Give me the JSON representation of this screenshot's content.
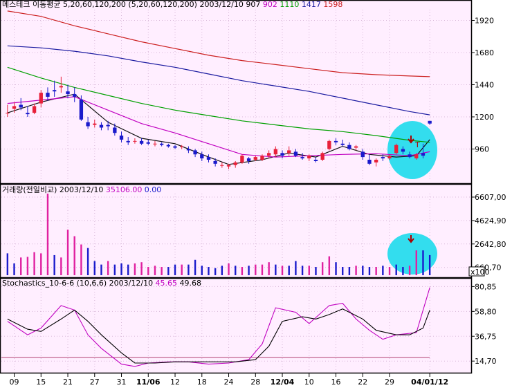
{
  "colors": {
    "background": "#ffffff",
    "plot_bg": "#ffeeff",
    "frame": "#000000",
    "bull": "#e8203a",
    "bear": "#1a1acc",
    "ma5": "#111111",
    "ma20": "#c000c0",
    "ma60": "#00a000",
    "ma120": "#1a1aa0",
    "ma200": "#cc2020",
    "vol_bull": "#e020a0",
    "vol_bear": "#1a1acc",
    "stoch_k": "#c000c0",
    "stoch_d": "#000000",
    "stoch_ref": "#b04070",
    "highlight": "#33ddee",
    "annotation_arrow": "#aa0000"
  },
  "header_price": {
    "parts": [
      {
        "text": "메스테크 이동평균 5,20,60,120,200 (5,20,60,120,200)  2003/12/10  907",
        "color": "#000000"
      },
      {
        "text": "  902",
        "color": "#c000c0"
      },
      {
        "text": "  1110",
        "color": "#00a000"
      },
      {
        "text": "  1417",
        "color": "#1a1aa0"
      },
      {
        "text": "  1598",
        "color": "#cc2020"
      }
    ]
  },
  "header_volume": {
    "parts": [
      {
        "text": "거래량(전일비교)  2003/12/10",
        "color": "#000000"
      },
      {
        "text": "  35106.00",
        "color": "#c000c0"
      },
      {
        "text": "  0.00",
        "color": "#1a1acc"
      }
    ]
  },
  "header_stoch": {
    "parts": [
      {
        "text": "Stochastics_10-6-6 (10,6,6) 2003/12/10",
        "color": "#000000"
      },
      {
        "text": "  45.65",
        "color": "#c000c0"
      },
      {
        "text": "  49.68",
        "color": "#000000"
      }
    ]
  },
  "annotation": {
    "text": "T"
  },
  "chart_data": [
    {
      "type": "candlestick",
      "title": "메스테크 이동평균 5,20,60,120,200 (5,20,60,120,200)",
      "ylim": [
        720,
        2000
      ],
      "yticks": [
        "1920",
        "1680",
        "1440",
        "1200",
        "960"
      ],
      "ytick_values": [
        1920,
        1680,
        1440,
        1200,
        960
      ],
      "xticks": [
        "09",
        "15",
        "21",
        "27",
        "31",
        "11/06",
        "12",
        "18",
        "24",
        "28",
        "12/04",
        "10",
        "16",
        "22",
        "29",
        "04/01/12"
      ],
      "xtick_index": [
        1,
        5,
        9,
        13,
        17,
        21,
        25,
        29,
        33,
        37,
        41,
        45,
        49,
        53,
        57,
        63
      ],
      "candles": [
        [
          1230,
          1290,
          1200,
          1230
        ],
        [
          1260,
          1310,
          1230,
          1280
        ],
        [
          1290,
          1340,
          1250,
          1270
        ],
        [
          1230,
          1280,
          1200,
          1220
        ],
        [
          1230,
          1300,
          1220,
          1280
        ],
        [
          1300,
          1400,
          1270,
          1380
        ],
        [
          1380,
          1420,
          1320,
          1350
        ],
        [
          1400,
          1470,
          1350,
          1390
        ],
        [
          1420,
          1500,
          1380,
          1430
        ],
        [
          1390,
          1440,
          1340,
          1370
        ],
        [
          1370,
          1420,
          1310,
          1350
        ],
        [
          1330,
          1360,
          1170,
          1180
        ],
        [
          1160,
          1200,
          1110,
          1130
        ],
        [
          1140,
          1180,
          1120,
          1150
        ],
        [
          1140,
          1160,
          1100,
          1120
        ],
        [
          1140,
          1170,
          1100,
          1130
        ],
        [
          1120,
          1150,
          1060,
          1080
        ],
        [
          1060,
          1090,
          1010,
          1030
        ],
        [
          1020,
          1050,
          990,
          1010
        ],
        [
          1020,
          1040,
          1000,
          1020
        ],
        [
          1020,
          1040,
          990,
          1000
        ],
        [
          1010,
          1030,
          990,
          1000
        ],
        [
          1000,
          1020,
          980,
          1000
        ],
        [
          1000,
          1010,
          980,
          990
        ],
        [
          990,
          1000,
          970,
          980
        ],
        [
          980,
          990,
          960,
          970
        ],
        [
          980,
          990,
          960,
          980
        ],
        [
          960,
          980,
          930,
          950
        ],
        [
          950,
          960,
          900,
          920
        ],
        [
          920,
          940,
          870,
          890
        ],
        [
          900,
          920,
          860,
          880
        ],
        [
          870,
          890,
          830,
          850
        ],
        [
          840,
          860,
          820,
          840
        ],
        [
          830,
          850,
          810,
          840
        ],
        [
          840,
          870,
          820,
          860
        ],
        [
          860,
          920,
          850,
          910
        ],
        [
          890,
          900,
          850,
          870
        ],
        [
          880,
          910,
          870,
          900
        ],
        [
          880,
          920,
          870,
          910
        ],
        [
          910,
          950,
          890,
          930
        ],
        [
          920,
          980,
          900,
          960
        ],
        [
          930,
          950,
          890,
          910
        ],
        [
          930,
          980,
          910,
          950
        ],
        [
          940,
          960,
          900,
          910
        ],
        [
          900,
          930,
          880,
          890
        ],
        [
          890,
          920,
          870,
          910
        ],
        [
          880,
          900,
          860,
          870
        ],
        [
          880,
          940,
          870,
          930
        ],
        [
          960,
          1030,
          950,
          1020
        ],
        [
          1020,
          1040,
          990,
          1010
        ],
        [
          1000,
          1030,
          980,
          990
        ],
        [
          990,
          1010,
          950,
          960
        ],
        [
          970,
          990,
          950,
          980
        ],
        [
          940,
          960,
          880,
          900
        ],
        [
          880,
          920,
          840,
          850
        ],
        [
          860,
          890,
          830,
          880
        ],
        [
          900,
          920,
          870,
          890
        ],
        [
          890,
          920,
          880,
          910
        ],
        [
          930,
          1000,
          920,
          990
        ],
        [
          960,
          980,
          920,
          940
        ],
        [
          920,
          940,
          890,
          900
        ],
        [
          890,
          930,
          880,
          920
        ],
        [
          930,
          1000,
          890,
          910
        ],
        [
          1170,
          1160,
          1140,
          1150
        ]
      ],
      "series": [
        {
          "name": "5",
          "points": [
            [
              0,
              1230
            ],
            [
              5,
              1310
            ],
            [
              10,
              1370
            ],
            [
              15,
              1160
            ],
            [
              20,
              1040
            ],
            [
              25,
              1000
            ],
            [
              30,
              900
            ],
            [
              33,
              845
            ],
            [
              38,
              880
            ],
            [
              42,
              930
            ],
            [
              46,
              900
            ],
            [
              50,
              980
            ],
            [
              54,
              920
            ],
            [
              58,
              900
            ],
            [
              61,
              910
            ],
            [
              63,
              1030
            ]
          ]
        },
        {
          "name": "20",
          "points": [
            [
              0,
              1300
            ],
            [
              10,
              1350
            ],
            [
              15,
              1250
            ],
            [
              20,
              1150
            ],
            [
              25,
              1080
            ],
            [
              30,
              1000
            ],
            [
              35,
              920
            ],
            [
              40,
              900
            ],
            [
              45,
              910
            ],
            [
              50,
              920
            ],
            [
              55,
              925
            ],
            [
              60,
              910
            ],
            [
              63,
              940
            ]
          ]
        },
        {
          "name": "60",
          "points": [
            [
              0,
              1570
            ],
            [
              5,
              1490
            ],
            [
              10,
              1420
            ],
            [
              15,
              1360
            ],
            [
              20,
              1300
            ],
            [
              25,
              1250
            ],
            [
              30,
              1210
            ],
            [
              35,
              1170
            ],
            [
              40,
              1140
            ],
            [
              45,
              1110
            ],
            [
              50,
              1090
            ],
            [
              55,
              1060
            ],
            [
              60,
              1025
            ],
            [
              63,
              1010
            ]
          ]
        },
        {
          "name": "120",
          "points": [
            [
              0,
              1730
            ],
            [
              5,
              1715
            ],
            [
              10,
              1690
            ],
            [
              15,
              1655
            ],
            [
              20,
              1610
            ],
            [
              25,
              1570
            ],
            [
              30,
              1520
            ],
            [
              35,
              1470
            ],
            [
              40,
              1430
            ],
            [
              45,
              1390
            ],
            [
              50,
              1340
            ],
            [
              55,
              1290
            ],
            [
              60,
              1240
            ],
            [
              63,
              1215
            ]
          ]
        },
        {
          "name": "200",
          "points": [
            [
              0,
              1990
            ],
            [
              5,
              1950
            ],
            [
              10,
              1880
            ],
            [
              15,
              1820
            ],
            [
              20,
              1760
            ],
            [
              25,
              1710
            ],
            [
              30,
              1660
            ],
            [
              35,
              1620
            ],
            [
              40,
              1590
            ],
            [
              45,
              1560
            ],
            [
              50,
              1530
            ],
            [
              55,
              1515
            ],
            [
              60,
              1505
            ],
            [
              63,
              1500
            ]
          ]
        }
      ]
    },
    {
      "type": "bar",
      "title": "거래량(전일비교)",
      "ylim": [
        0,
        6900
      ],
      "yticks": [
        "6607,00",
        "4624,90",
        "2642,80",
        "660,70"
      ],
      "ytick_values": [
        6607,
        4624.9,
        2642.8,
        660.7
      ],
      "unit_label": "x100",
      "values": [
        1850,
        1000,
        1500,
        1550,
        1950,
        1850,
        6900,
        1700,
        1500,
        3850,
        3300,
        2600,
        2300,
        1200,
        900,
        1200,
        900,
        1000,
        900,
        1000,
        1100,
        700,
        800,
        700,
        700,
        900,
        900,
        900,
        1300,
        800,
        700,
        600,
        800,
        1000,
        800,
        700,
        800,
        900,
        900,
        1100,
        900,
        800,
        800,
        1200,
        800,
        800,
        700,
        1100,
        1600,
        1100,
        700,
        700,
        800,
        800,
        700,
        700,
        800,
        700,
        900,
        700,
        800,
        2100,
        2100,
        1700
      ],
      "up": [
        false,
        false,
        true,
        true,
        true,
        true,
        true,
        false,
        true,
        true,
        true,
        true,
        false,
        false,
        false,
        true,
        false,
        false,
        false,
        true,
        true,
        true,
        true,
        true,
        false,
        false,
        true,
        false,
        false,
        false,
        false,
        false,
        false,
        true,
        false,
        true,
        false,
        true,
        true,
        true,
        false,
        true,
        false,
        false,
        false,
        true,
        false,
        true,
        true,
        false,
        false,
        false,
        true,
        false,
        false,
        true,
        false,
        true,
        false,
        false,
        true,
        true,
        false,
        false
      ]
    },
    {
      "type": "line",
      "title": "Stochastics_10-6-6 (10,6,6)",
      "ylim": [
        5,
        86
      ],
      "yticks": [
        "80,85",
        "58,80",
        "36,75",
        "14,70"
      ],
      "ytick_values": [
        80.85,
        58.8,
        36.75,
        14.7
      ],
      "reference_line": 18,
      "series": [
        {
          "name": "K",
          "points": [
            [
              0,
              50
            ],
            [
              3,
              38
            ],
            [
              5,
              44
            ],
            [
              8,
              64
            ],
            [
              10,
              60
            ],
            [
              12,
              38
            ],
            [
              14,
              26
            ],
            [
              17,
              12
            ],
            [
              19,
              10
            ],
            [
              21,
              13
            ],
            [
              24,
              14
            ],
            [
              27,
              14
            ],
            [
              30,
              12
            ],
            [
              33,
              13
            ],
            [
              36,
              16
            ],
            [
              38,
              30
            ],
            [
              40,
              62
            ],
            [
              43,
              58
            ],
            [
              45,
              48
            ],
            [
              48,
              64
            ],
            [
              50,
              66
            ],
            [
              52,
              52
            ],
            [
              54,
              42
            ],
            [
              56,
              34
            ],
            [
              58,
              38
            ],
            [
              61,
              40
            ],
            [
              63,
              80
            ]
          ]
        },
        {
          "name": "D",
          "points": [
            [
              0,
              52
            ],
            [
              3,
              43
            ],
            [
              5,
              41
            ],
            [
              8,
              52
            ],
            [
              10,
              60
            ],
            [
              12,
              50
            ],
            [
              14,
              38
            ],
            [
              17,
              22
            ],
            [
              19,
              13
            ],
            [
              22,
              13
            ],
            [
              25,
              14
            ],
            [
              28,
              14
            ],
            [
              31,
              14
            ],
            [
              34,
              14
            ],
            [
              37,
              16
            ],
            [
              39,
              28
            ],
            [
              41,
              50
            ],
            [
              44,
              54
            ],
            [
              46,
              52
            ],
            [
              48,
              56
            ],
            [
              50,
              61
            ],
            [
              53,
              52
            ],
            [
              55,
              42
            ],
            [
              58,
              38
            ],
            [
              60,
              38
            ],
            [
              62,
              44
            ],
            [
              63,
              60
            ]
          ]
        }
      ]
    }
  ]
}
